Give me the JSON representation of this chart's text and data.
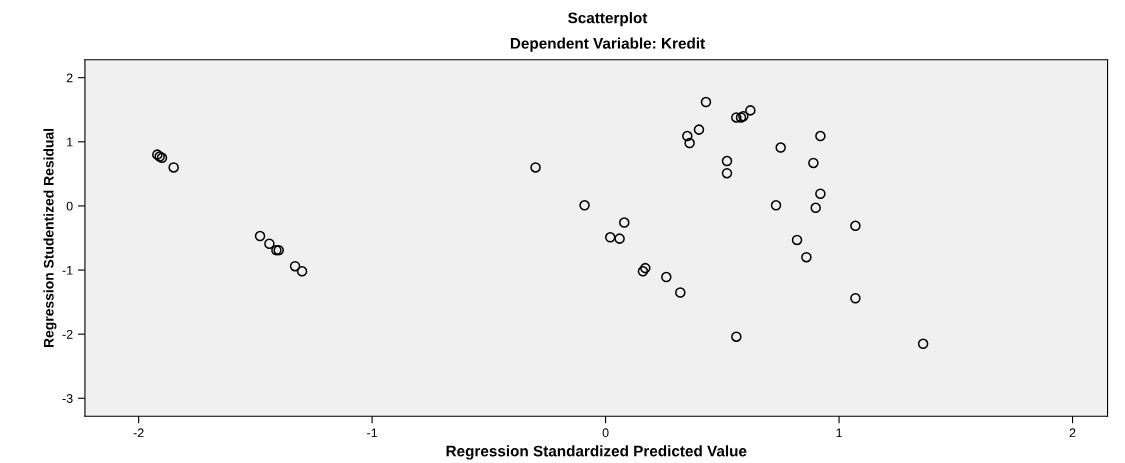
{
  "chart_data": {
    "type": "scatter",
    "title": "Scatterplot",
    "subtitle": "Dependent Variable: Kredit",
    "xlabel": "Regression Standardized Predicted Value",
    "ylabel": "Regression Studentized Residual",
    "xlim": [
      -2.23,
      2.15
    ],
    "ylim": [
      -3.28,
      2.28
    ],
    "xticks": [
      -2,
      -1,
      0,
      1,
      2
    ],
    "yticks": [
      -3,
      -2,
      -1,
      0,
      1,
      2
    ],
    "grid": false,
    "marker": "circle",
    "series": [
      {
        "color": "#000000",
        "x": [
          -1.92,
          -1.91,
          -1.9,
          -1.85,
          -1.48,
          -1.44,
          -1.41,
          -1.4,
          -1.33,
          -1.3,
          -0.3,
          -0.09,
          0.02,
          0.06,
          0.08,
          0.16,
          0.17,
          0.26,
          0.32,
          0.43,
          0.4,
          0.35,
          0.36,
          0.62,
          0.56,
          0.58,
          0.59,
          0.75,
          0.52,
          0.52,
          0.73,
          0.56,
          0.92,
          0.89,
          0.92,
          0.9,
          1.07,
          0.82,
          0.86,
          1.07,
          1.36
        ],
        "values": [
          0.8,
          0.77,
          0.75,
          0.6,
          -0.47,
          -0.59,
          -0.69,
          -0.69,
          -0.94,
          -1.02,
          0.6,
          0.01,
          -0.49,
          -0.51,
          -0.26,
          -1.02,
          -0.97,
          -1.11,
          -1.35,
          1.62,
          1.19,
          1.09,
          0.98,
          1.49,
          1.38,
          1.38,
          1.4,
          0.91,
          0.7,
          0.51,
          0.01,
          -2.04,
          1.09,
          0.67,
          0.19,
          -0.03,
          -0.31,
          -0.53,
          -0.8,
          -1.44,
          -2.15
        ]
      }
    ]
  }
}
